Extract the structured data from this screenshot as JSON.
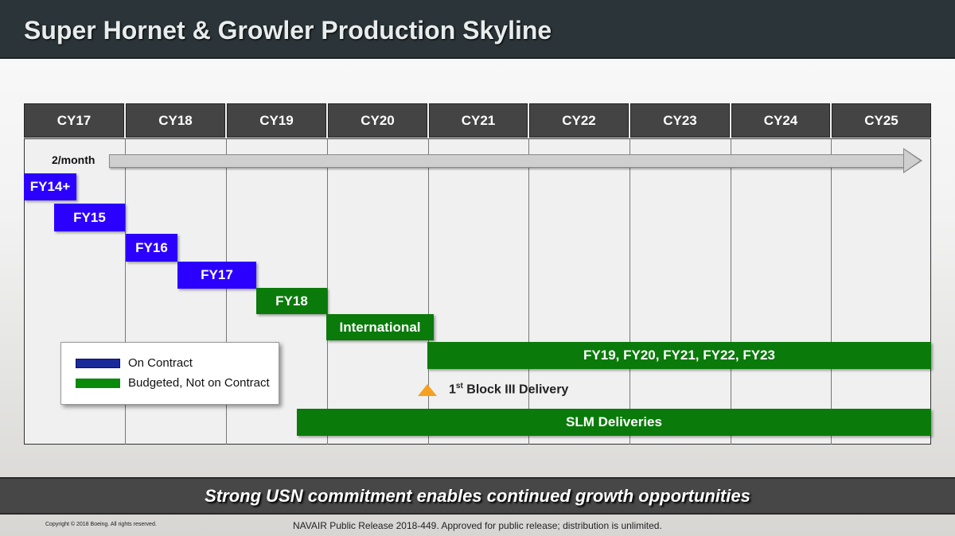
{
  "title": "Super Hornet & Growler Production Skyline",
  "columns": [
    "CY17",
    "CY18",
    "CY19",
    "CY20",
    "CY21",
    "CY22",
    "CY23",
    "CY24",
    "CY25"
  ],
  "rate_label": "2/month",
  "bars": [
    {
      "label": "FY14+",
      "status": "on_contract"
    },
    {
      "label": "FY15",
      "status": "on_contract"
    },
    {
      "label": "FY16",
      "status": "on_contract"
    },
    {
      "label": "FY17",
      "status": "on_contract"
    },
    {
      "label": "FY18",
      "status": "budgeted"
    },
    {
      "label": "International",
      "status": "budgeted"
    },
    {
      "label": "FY19, FY20, FY21, FY22, FY23",
      "status": "budgeted"
    },
    {
      "label": "SLM Deliveries",
      "status": "budgeted"
    }
  ],
  "legend": {
    "on_contract": "On Contract",
    "budgeted": "Budgeted, Not on Contract"
  },
  "milestone": {
    "ordinal": "1",
    "suffix": "st",
    "text": " Block III Delivery"
  },
  "colors": {
    "on_contract": "#2b00ff",
    "budgeted": "#0a7a0a",
    "milestone": "#f5a020"
  },
  "tagline": "Strong USN commitment enables continued growth opportunities",
  "copyright": "Copyright © 2018 Boeing. All rights reserved.",
  "release": "NAVAIR Public Release 2018-449. Approved for public release; distribution is unlimited."
}
